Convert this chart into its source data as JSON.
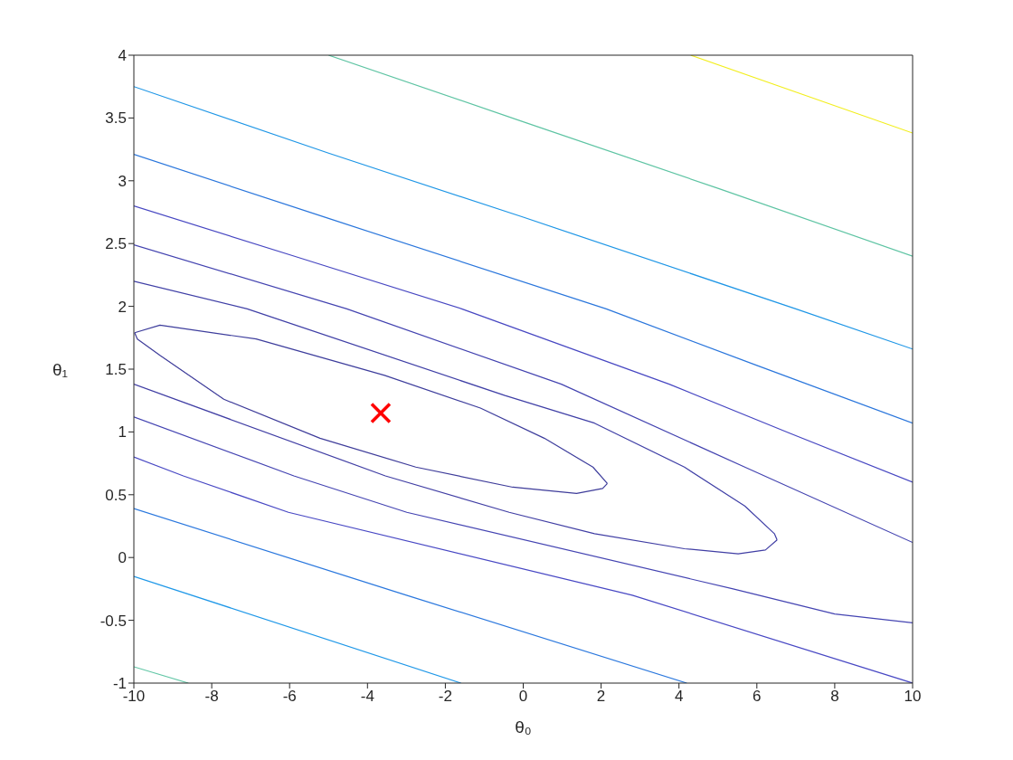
{
  "chart_data": {
    "type": "line",
    "xlabel": "θ₀",
    "ylabel": "θ₁",
    "xlim": [
      -10,
      10
    ],
    "ylim": [
      -1,
      4
    ],
    "xticks": [
      -10,
      -8,
      -6,
      -4,
      -2,
      0,
      2,
      4,
      6,
      8,
      10
    ],
    "yticks": [
      -1,
      -0.5,
      0,
      0.5,
      1,
      1.5,
      2,
      2.5,
      3,
      3.5,
      4
    ],
    "marker": "none",
    "line_style": "solid",
    "series": [
      {
        "color": "#3d3d9c",
        "x": [
          -9.98,
          -9.33,
          -6.86,
          -3.56,
          -1.1,
          0.54,
          1.79,
          2.16
        ],
        "values": [
          1.79,
          1.85,
          1.74,
          1.45,
          1.19,
          0.95,
          0.72,
          0.59
        ]
      },
      {
        "color": "#3e3c9a",
        "x": [
          -9.98,
          -9.91,
          -9.33,
          -7.69,
          -5.22,
          -2.76,
          -0.27,
          1.37,
          2.04,
          2.16
        ],
        "values": [
          1.79,
          1.74,
          1.61,
          1.26,
          0.95,
          0.72,
          0.56,
          0.51,
          0.55,
          0.59
        ]
      },
      {
        "color": "#3f3fa6",
        "x": [
          -10,
          -7.09,
          -0.47,
          1.83,
          4.14,
          5.69,
          6.45,
          6.52
        ],
        "values": [
          2.2,
          1.98,
          1.29,
          1.07,
          0.72,
          0.41,
          0.19,
          0.14
        ]
      },
      {
        "color": "#403ea4",
        "x": [
          -10,
          -3.54,
          -0.36,
          1.83,
          4.14,
          5.52,
          6.22,
          6.52
        ],
        "values": [
          1.38,
          0.65,
          0.36,
          0.19,
          0.07,
          0.03,
          0.06,
          0.14
        ]
      },
      {
        "color": "#4343b0",
        "x": [
          -10,
          -4.53,
          0.98,
          5.69,
          10
        ],
        "values": [
          2.49,
          1.98,
          1.38,
          0.72,
          0.12
        ]
      },
      {
        "color": "#4444b2",
        "x": [
          -10,
          -5.89,
          -2.99,
          5.39,
          8,
          10
        ],
        "values": [
          1.12,
          0.65,
          0.36,
          -0.25,
          -0.45,
          -0.52
        ]
      },
      {
        "color": "#4747c2",
        "x": [
          -10,
          -5.78,
          -1.58,
          3.75,
          6.84,
          10
        ],
        "values": [
          2.8,
          2.39,
          1.98,
          1.38,
          0.99,
          0.6
        ]
      },
      {
        "color": "#4848c4",
        "x": [
          -10,
          -8.73,
          -6.03,
          2.8,
          10
        ],
        "values": [
          0.8,
          0.65,
          0.36,
          -0.3,
          -1
        ]
      },
      {
        "color": "#2a76dc",
        "x": [
          -10,
          -5,
          2.13,
          6,
          10
        ],
        "values": [
          3.21,
          2.7,
          1.98,
          1.53,
          1.07
        ]
      },
      {
        "color": "#2b78de",
        "x": [
          -10,
          -3,
          4.2
        ],
        "values": [
          0.39,
          -0.3,
          -1
        ]
      },
      {
        "color": "#1e96e6",
        "x": [
          -10,
          -5,
          0,
          7,
          10
        ],
        "values": [
          3.75,
          3.22,
          2.71,
          1.98,
          1.66
        ]
      },
      {
        "color": "#1f98e8",
        "x": [
          -10,
          -1.6
        ],
        "values": [
          -0.15,
          -1
        ]
      },
      {
        "color": "#5ec4a3",
        "x": [
          -5,
          0,
          5,
          10
        ],
        "values": [
          4,
          3.47,
          2.94,
          2.4
        ]
      },
      {
        "color": "#60c6a5",
        "x": [
          -10,
          -8.6
        ],
        "values": [
          -0.87,
          -1
        ]
      },
      {
        "color": "#f2ee1c",
        "x": [
          4.3,
          10
        ],
        "values": [
          4,
          3.38
        ]
      },
      {
        "type": "scatter",
        "marker": "cross",
        "color": "#ff0000",
        "x": [
          -3.66
        ],
        "values": [
          1.15
        ]
      }
    ]
  }
}
